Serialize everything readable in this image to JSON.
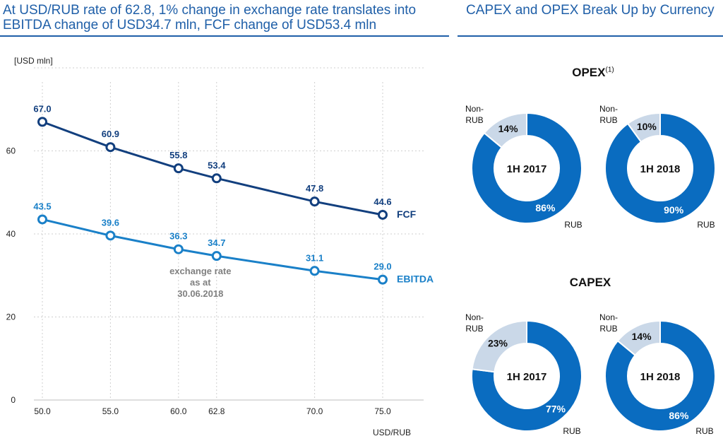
{
  "left_title": "At USD/RUB rate of 62.8, 1% change in exchange rate translates into EBITDA change of USD34.7 mln, FCF change of USD53.4 mln",
  "right_title": "CAPEX and OPEX Break Up by Currency",
  "colors": {
    "fcf": "#123f7e",
    "ebitda": "#1a80c8",
    "rub": "#0a6cc0",
    "non_rub": "#cad8e8",
    "accent": "#1f5fa8"
  },
  "chart_data": [
    {
      "type": "line",
      "ylabel": "[USD mln]",
      "xlabel": "USD/RUB",
      "x": [
        50.0,
        55.0,
        60.0,
        62.8,
        70.0,
        75.0
      ],
      "x_tick_labels": [
        "50.0",
        "55.0",
        "60.0",
        "62.8",
        "70.0",
        "75.0"
      ],
      "y_ticks": [
        0,
        20,
        40,
        60
      ],
      "ylim": [
        0,
        80
      ],
      "grid": true,
      "series": [
        {
          "name": "FCF",
          "values": [
            67.0,
            60.9,
            55.8,
            53.4,
            47.8,
            44.6
          ],
          "labels": [
            "67.0",
            "60.9",
            "55.8",
            "53.4",
            "47.8",
            "44.6"
          ]
        },
        {
          "name": "EBITDA",
          "values": [
            43.5,
            39.6,
            36.3,
            34.7,
            31.1,
            29.0
          ],
          "labels": [
            "43.5",
            "39.6",
            "36.3",
            "34.7",
            "31.1",
            "29.0"
          ]
        }
      ],
      "annotation": [
        "exchange rate",
        "as at",
        "30.06.2018"
      ]
    },
    {
      "type": "pie",
      "group": "OPEX",
      "footnote": "(1)",
      "title": "1H 2017",
      "slices": [
        {
          "label": "RUB",
          "value": 86,
          "text": "86%"
        },
        {
          "label": "Non-RUB",
          "value": 14,
          "text": "14%"
        }
      ]
    },
    {
      "type": "pie",
      "group": "OPEX",
      "title": "1H 2018",
      "slices": [
        {
          "label": "RUB",
          "value": 90,
          "text": "90%"
        },
        {
          "label": "Non-RUB",
          "value": 10,
          "text": "10%"
        }
      ]
    },
    {
      "type": "pie",
      "group": "CAPEX",
      "title": "1H 2017",
      "slices": [
        {
          "label": "RUB",
          "value": 77,
          "text": "77%"
        },
        {
          "label": "Non-RUB",
          "value": 23,
          "text": "23%"
        }
      ]
    },
    {
      "type": "pie",
      "group": "CAPEX",
      "title": "1H 2018",
      "slices": [
        {
          "label": "RUB",
          "value": 86,
          "text": "86%"
        },
        {
          "label": "Non-RUB",
          "value": 14,
          "text": "14%"
        }
      ]
    }
  ],
  "labels": {
    "opex": "OPEX",
    "capex": "CAPEX",
    "non_rub_line1": "Non-",
    "non_rub_line2": "RUB",
    "rub": "RUB"
  }
}
